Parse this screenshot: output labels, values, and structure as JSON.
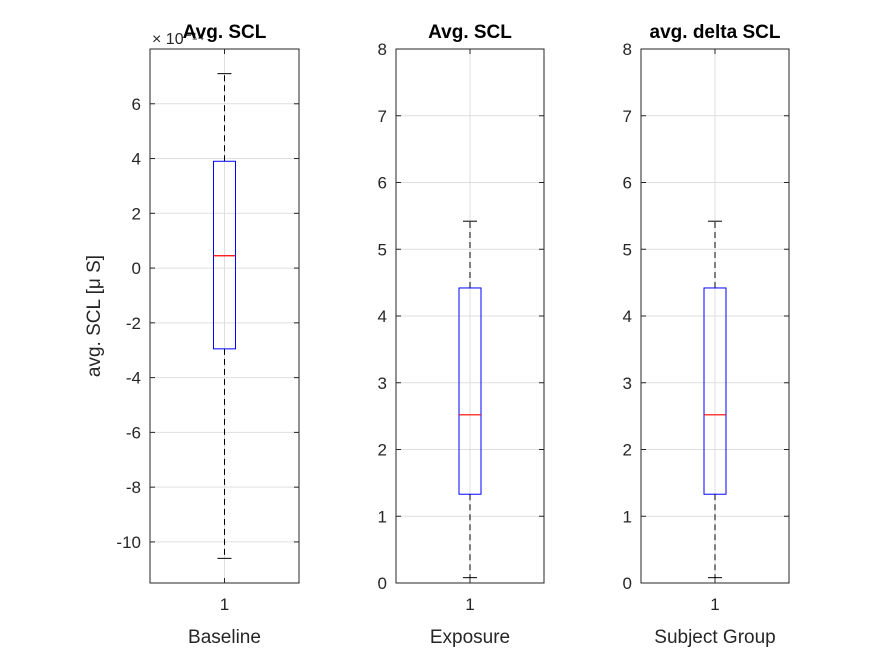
{
  "chart_data": [
    {
      "type": "box",
      "title": "Avg. SCL",
      "xlabel": "Baseline",
      "ylabel": "avg. SCL [μ S]",
      "categories": [
        "1"
      ],
      "ylim": [
        -11.5,
        8
      ],
      "yticks": [
        -10,
        -8,
        -6,
        -4,
        -2,
        0,
        2,
        4,
        6
      ],
      "exponent_label": "× 10⁻¹⁴",
      "grid": true,
      "box": {
        "whisker_low": -10.6,
        "q1": -2.95,
        "median": 0.45,
        "q3": 3.9,
        "whisker_high": 7.1
      }
    },
    {
      "type": "box",
      "title": "Avg. SCL",
      "xlabel": "Exposure",
      "ylabel": "",
      "categories": [
        "1"
      ],
      "ylim": [
        0,
        8
      ],
      "yticks": [
        0,
        1,
        2,
        3,
        4,
        5,
        6,
        7,
        8
      ],
      "grid": true,
      "box": {
        "whisker_low": 0.08,
        "q1": 1.33,
        "median": 2.52,
        "q3": 4.42,
        "whisker_high": 5.42
      }
    },
    {
      "type": "box",
      "title": "avg. delta SCL",
      "xlabel": "Subject Group",
      "ylabel": "",
      "categories": [
        "1"
      ],
      "ylim": [
        0,
        8
      ],
      "yticks": [
        0,
        1,
        2,
        3,
        4,
        5,
        6,
        7,
        8
      ],
      "grid": true,
      "box": {
        "whisker_low": 0.08,
        "q1": 1.33,
        "median": 2.52,
        "q3": 4.42,
        "whisker_high": 5.42
      }
    }
  ],
  "colors": {
    "box": "#0000ff",
    "median": "#ff0000",
    "whisker": "#000000",
    "axis": "#262626",
    "grid": "#dfdfdf"
  }
}
